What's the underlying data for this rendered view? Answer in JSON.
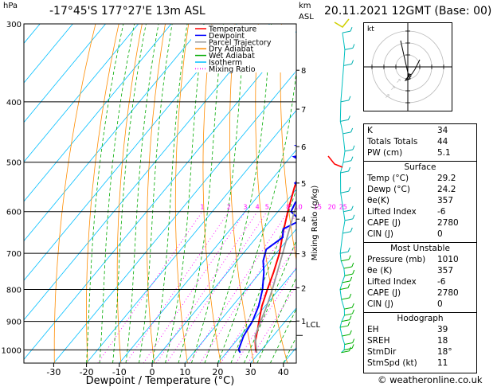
{
  "header": {
    "hpa_label": "hPa",
    "location": "-17°45'S  177°27'E  13m  ASL",
    "km_label": "km",
    "asl_label": "ASL",
    "datetime": "20.11.2021  12GMT  (Base: 00)"
  },
  "chart_data": {
    "type": "line",
    "xlabel": "Dewpoint / Temperature (°C)",
    "ylabel": "hPa",
    "mixing_ratio_axis_label": "Mixing Ratio (g/kg)",
    "x_ticks": [
      -30,
      -20,
      -10,
      0,
      10,
      20,
      30,
      40
    ],
    "pressure_ticks": [
      300,
      400,
      500,
      600,
      700,
      800,
      900,
      1000
    ],
    "mixing_ratio_labels": [
      "1",
      "2",
      "3",
      "4",
      "5",
      "8",
      "10",
      "15",
      "20",
      "25"
    ],
    "km_ticks": [
      "8",
      "7",
      "6",
      "5",
      "4",
      "3",
      "2",
      "1"
    ],
    "lcl_label": "LCL",
    "legend": [
      {
        "name": "Temperature",
        "color": "#ff0000",
        "style": "solid"
      },
      {
        "name": "Dewpoint",
        "color": "#0000ff",
        "style": "solid"
      },
      {
        "name": "Parcel Trajectory",
        "color": "#999999",
        "style": "solid"
      },
      {
        "name": "Dry Adiabat",
        "color": "#ff8c00",
        "style": "solid"
      },
      {
        "name": "Wet Adiabat",
        "color": "#00aa00",
        "style": "solid"
      },
      {
        "name": "Isotherm",
        "color": "#00bfff",
        "style": "solid"
      },
      {
        "name": "Mixing Ratio",
        "color": "#ff00ff",
        "style": "dotted"
      }
    ],
    "series": [
      {
        "name": "Temperature",
        "color": "#ff0000",
        "points": [
          [
            1010,
            29.2
          ],
          [
            1000,
            28.2
          ],
          [
            970,
            26
          ],
          [
            925,
            23.5
          ],
          [
            900,
            22
          ],
          [
            850,
            19
          ],
          [
            800,
            16.5
          ],
          [
            750,
            14
          ],
          [
            700,
            11
          ],
          [
            650,
            7
          ],
          [
            600,
            3
          ],
          [
            550,
            -1
          ],
          [
            500,
            -5
          ],
          [
            450,
            -10
          ],
          [
            400,
            -16
          ],
          [
            350,
            -23
          ],
          [
            300,
            -31
          ]
        ]
      },
      {
        "name": "Dewpoint",
        "color": "#0000ff",
        "points": [
          [
            1010,
            24.2
          ],
          [
            1000,
            23
          ],
          [
            950,
            21
          ],
          [
            900,
            20
          ],
          [
            850,
            18
          ],
          [
            800,
            15
          ],
          [
            750,
            11
          ],
          [
            720,
            8
          ],
          [
            690,
            6
          ],
          [
            660,
            8
          ],
          [
            640,
            6
          ],
          [
            620,
            9
          ],
          [
            600,
            4
          ],
          [
            580,
            3
          ],
          [
            560,
            4
          ],
          [
            540,
            -2
          ],
          [
            520,
            0
          ],
          [
            500,
            -5
          ],
          [
            490,
            -9
          ],
          [
            480,
            -3
          ],
          [
            470,
            -11
          ],
          [
            460,
            -6
          ],
          [
            450,
            -12
          ],
          [
            440,
            -6
          ],
          [
            430,
            -12
          ],
          [
            410,
            -10
          ],
          [
            380,
            -10
          ],
          [
            360,
            -14
          ],
          [
            330,
            -19
          ],
          [
            310,
            -27
          ],
          [
            300,
            -34
          ]
        ]
      },
      {
        "name": "Parcel Trajectory",
        "color": "#999999",
        "points": [
          [
            1010,
            29.2
          ],
          [
            950,
            24.5
          ],
          [
            900,
            22.5
          ],
          [
            850,
            20.5
          ],
          [
            800,
            18
          ],
          [
            700,
            12
          ],
          [
            600,
            5
          ],
          [
            500,
            -3
          ],
          [
            400,
            -14
          ],
          [
            300,
            -28
          ]
        ]
      }
    ]
  },
  "indices": [
    {
      "label": "K",
      "value": "34"
    },
    {
      "label": "Totals Totals",
      "value": "44"
    },
    {
      "label": "PW (cm)",
      "value": "5.1"
    }
  ],
  "surface": {
    "title": "Surface",
    "rows": [
      {
        "label": "Temp (°C)",
        "value": "29.2"
      },
      {
        "label": "Dewp (°C)",
        "value": "24.2"
      },
      {
        "label": "θe(K)",
        "value": "357"
      },
      {
        "label": "Lifted Index",
        "value": "-6"
      },
      {
        "label": "CAPE (J)",
        "value": "2780"
      },
      {
        "label": "CIN (J)",
        "value": "0"
      }
    ]
  },
  "most_unstable": {
    "title": "Most Unstable",
    "rows": [
      {
        "label": "Pressure (mb)",
        "value": "1010"
      },
      {
        "label": "θe (K)",
        "value": "357"
      },
      {
        "label": "Lifted Index",
        "value": "-6"
      },
      {
        "label": "CAPE (J)",
        "value": "2780"
      },
      {
        "label": "CIN (J)",
        "value": "0"
      }
    ]
  },
  "hodograph_table": {
    "title": "Hodograph",
    "rows": [
      {
        "label": "EH",
        "value": "39"
      },
      {
        "label": "SREH",
        "value": "18"
      },
      {
        "label": "StmDir",
        "value": "18°"
      },
      {
        "label": "StmSpd (kt)",
        "value": "11"
      }
    ]
  },
  "hodograph_plot": {
    "label": "kt"
  },
  "footer": {
    "copyright": "© weatheronline.co.uk"
  }
}
